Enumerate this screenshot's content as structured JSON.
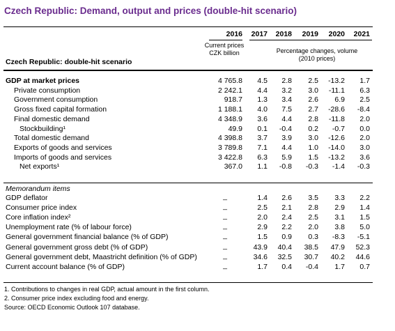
{
  "title": "Czech Republic: Demand, output and prices (double-hit scenario)",
  "header": {
    "years": [
      "2016",
      "2017",
      "2018",
      "2019",
      "2020",
      "2021"
    ],
    "units_current": "Current prices CZK billion",
    "units_pct": "Percentage changes, volume (2010 prices)",
    "stub": "Czech Republic: double-hit scenario"
  },
  "table": {
    "rows": [
      [
        "GDP at market prices",
        "4 765.8",
        "4.5",
        "2.8",
        "2.5",
        "-13.2",
        "1.7"
      ],
      [
        "Private consumption",
        "2 242.1",
        "4.4",
        "3.2",
        "3.0",
        "-11.1",
        "6.3"
      ],
      [
        "Government consumption",
        "918.7",
        "1.3",
        "3.4",
        "2.6",
        "6.9",
        "2.5"
      ],
      [
        "Gross fixed capital formation",
        "1 188.1",
        "4.0",
        "7.5",
        "2.7",
        "-28.6",
        "-8.4"
      ],
      [
        "Final domestic demand",
        "4 348.9",
        "3.6",
        "4.4",
        "2.8",
        "-11.8",
        "2.0"
      ],
      [
        "Stockbuilding¹",
        "49.9",
        "0.1",
        "-0.4",
        "0.2",
        "-0.7",
        "0.0"
      ],
      [
        "Total domestic demand",
        "4 398.8",
        "3.7",
        "3.9",
        "3.0",
        "-12.6",
        "2.0"
      ],
      [
        "Exports of goods and services",
        "3 789.8",
        "7.1",
        "4.4",
        "1.0",
        "-14.0",
        "3.0"
      ],
      [
        "Imports of goods and services",
        "3 422.8",
        "6.3",
        "5.9",
        "1.5",
        "-13.2",
        "3.6"
      ],
      [
        "Net exports¹",
        "367.0",
        "1.1",
        "-0.8",
        "-0.3",
        "-1.4",
        "-0.3"
      ]
    ]
  },
  "memorandum": {
    "title": "Memorandum items",
    "rows": [
      [
        "GDP deflator",
        "_",
        "1.4",
        "2.6",
        "3.5",
        "3.3",
        "2.2"
      ],
      [
        "Consumer price index",
        "_",
        "2.5",
        "2.1",
        "2.8",
        "2.9",
        "1.4"
      ],
      [
        "Core inflation index²",
        "_",
        "2.0",
        "2.4",
        "2.5",
        "3.1",
        "1.5"
      ],
      [
        "Unemployment rate (% of labour force)",
        "_",
        "2.9",
        "2.2",
        "2.0",
        "3.8",
        "5.0"
      ],
      [
        "General government financial balance (% of GDP)",
        "_",
        "1.5",
        "0.9",
        "0.3",
        "-8.3",
        "-5.1"
      ],
      [
        "General government gross debt (% of GDP)",
        "_",
        "43.9",
        "40.4",
        "38.5",
        "47.9",
        "52.3"
      ],
      [
        "General government debt, Maastricht definition (% of GDP)",
        "_",
        "34.6",
        "32.5",
        "30.7",
        "40.2",
        "44.6"
      ],
      [
        "Current account balance (% of GDP)",
        "_",
        "1.7",
        "0.4",
        "-0.4",
        "1.7",
        "0.7"
      ]
    ]
  },
  "footnotes": [
    "1. Contributions to changes in real GDP, actual amount in the first column.",
    "2. Consumer price index excluding food and energy.",
    "Source:   OECD Economic Outlook 107 database."
  ]
}
